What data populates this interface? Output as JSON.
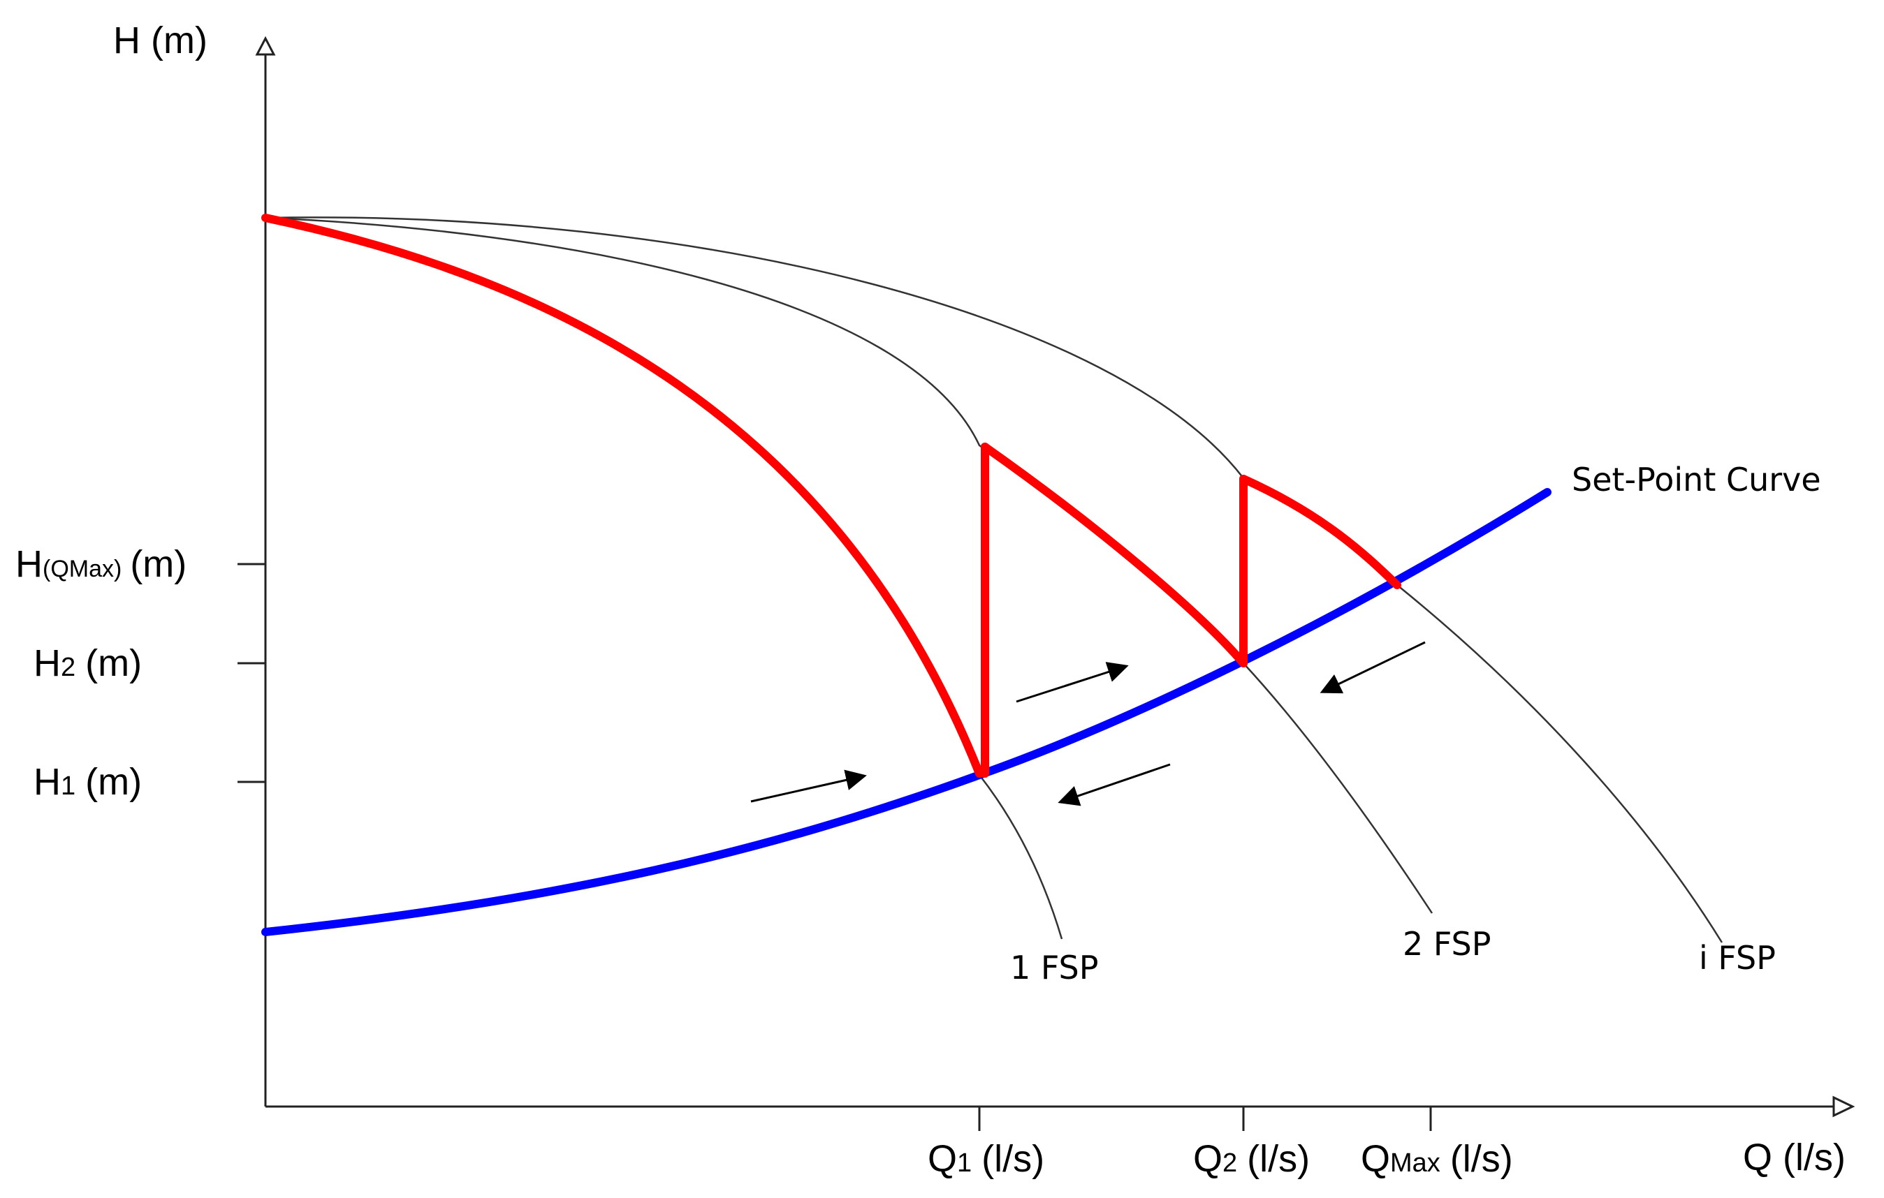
{
  "axes": {
    "y_label": "H (m)",
    "x_label": "Q (l/s)"
  },
  "y_ticks": [
    {
      "main": "H",
      "sub": "(QMax)",
      "unit": "(m)"
    },
    {
      "main": "H",
      "sub": "2",
      "unit": "(m)"
    },
    {
      "main": "H",
      "sub": "1",
      "unit": "(m)"
    }
  ],
  "x_ticks": [
    {
      "main": "Q",
      "sub": "1",
      "unit": "(l/s)"
    },
    {
      "main": "Q",
      "sub": "2",
      "unit": "(l/s)"
    },
    {
      "main": "Q",
      "sub": "Max",
      "unit": "(l/s)"
    }
  ],
  "curves": {
    "setpoint": "Set-Point Curve",
    "fsp1": "1 FSP",
    "fsp2": "2 FSP",
    "fspi": "i FSP"
  },
  "colors": {
    "setpoint": "#0000ff",
    "operating": "#ff0000",
    "pump_curves": "#333333",
    "axes": "#000000"
  }
}
